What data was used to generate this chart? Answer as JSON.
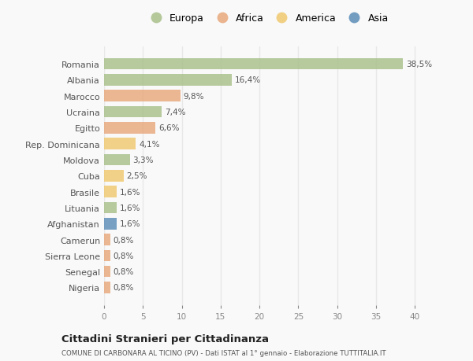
{
  "countries": [
    "Romania",
    "Albania",
    "Marocco",
    "Ucraina",
    "Egitto",
    "Rep. Dominicana",
    "Moldova",
    "Cuba",
    "Brasile",
    "Lituania",
    "Afghanistan",
    "Camerun",
    "Sierra Leone",
    "Senegal",
    "Nigeria"
  ],
  "values": [
    38.5,
    16.4,
    9.8,
    7.4,
    6.6,
    4.1,
    3.3,
    2.5,
    1.6,
    1.6,
    1.6,
    0.8,
    0.8,
    0.8,
    0.8
  ],
  "labels": [
    "38,5%",
    "16,4%",
    "9,8%",
    "7,4%",
    "6,6%",
    "4,1%",
    "3,3%",
    "2,5%",
    "1,6%",
    "1,6%",
    "1,6%",
    "0,8%",
    "0,8%",
    "0,8%",
    "0,8%"
  ],
  "categories": [
    "Europa",
    "Europa",
    "Africa",
    "Europa",
    "Africa",
    "America",
    "Europa",
    "America",
    "America",
    "Europa",
    "Asia",
    "Africa",
    "Africa",
    "Africa",
    "Africa"
  ],
  "colors": {
    "Europa": "#a8c08a",
    "Africa": "#e8a87c",
    "America": "#f0c96e",
    "Asia": "#5b8db8"
  },
  "legend_order": [
    "Europa",
    "Africa",
    "America",
    "Asia"
  ],
  "title": "Cittadini Stranieri per Cittadinanza",
  "subtitle": "COMUNE DI CARBONARA AL TICINO (PV) - Dati ISTAT al 1° gennaio - Elaborazione TUTTITALIA.IT",
  "xlim": [
    0,
    42
  ],
  "xticks": [
    0,
    5,
    10,
    15,
    20,
    25,
    30,
    35,
    40
  ],
  "bg_color": "#f9f9f9",
  "grid_color": "#e8e8e8",
  "bar_height": 0.72
}
